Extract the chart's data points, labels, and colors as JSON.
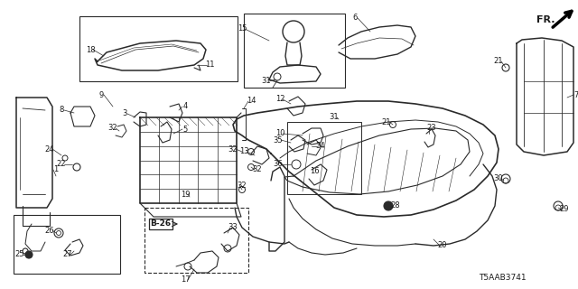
{
  "background_color": "#ffffff",
  "line_color": "#2a2a2a",
  "text_color": "#1a1a1a",
  "diagram_code": "T5AAB3741",
  "fr_text": "FR.",
  "b26_text": "B-26",
  "figsize": [
    6.4,
    3.2
  ],
  "dpi": 100
}
